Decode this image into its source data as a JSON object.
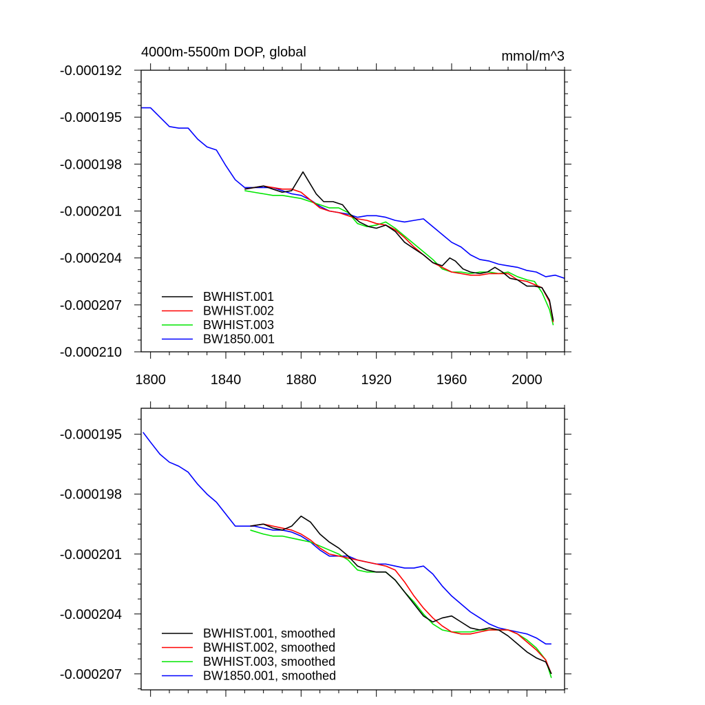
{
  "chart_data": [
    {
      "type": "line",
      "title": "4000m-5500m DOP, global",
      "units": "mmol/m^3",
      "xlim": [
        1795,
        2020
      ],
      "ylim": [
        -0.00021,
        -0.000192
      ],
      "xticks": [
        1800,
        1840,
        1880,
        1920,
        1960,
        2000
      ],
      "yticks": [
        -0.000192,
        -0.000195,
        -0.000198,
        -0.000201,
        -0.000204,
        -0.000207,
        -0.00021
      ],
      "ytick_labels": [
        "-0.000192",
        "-0.000195",
        "-0.000198",
        "-0.000201",
        "-0.000204",
        "-0.000207",
        "-0.000210"
      ],
      "xtick_labels": [
        "1800",
        "1840",
        "1880",
        "1920",
        "1960",
        "2000"
      ],
      "legend_position": "bottom-left",
      "series": [
        {
          "name": "BWHIST.001",
          "color": "#000000",
          "x": [
            1850,
            1855,
            1860,
            1865,
            1870,
            1875,
            1878,
            1881,
            1884,
            1888,
            1892,
            1897,
            1902,
            1906,
            1911,
            1916,
            1920,
            1925,
            1930,
            1935,
            1940,
            1945,
            1950,
            1955,
            1959,
            1962,
            1966,
            1970,
            1975,
            1979,
            1983,
            1987,
            1991,
            1995,
            2000,
            2004,
            2008,
            2012,
            2014
          ],
          "y": [
            -0.0001996,
            -0.0001995,
            -0.0001994,
            -0.0001996,
            -0.0001998,
            -0.0001997,
            -0.0001991,
            -0.0001985,
            -0.0001991,
            -0.0001999,
            -0.0002004,
            -0.0002004,
            -0.0002006,
            -0.0002012,
            -0.0002017,
            -0.000202,
            -0.0002021,
            -0.0002019,
            -0.0002023,
            -0.000203,
            -0.0002034,
            -0.0002038,
            -0.0002043,
            -0.0002045,
            -0.000204,
            -0.0002042,
            -0.0002047,
            -0.0002049,
            -0.000205,
            -0.0002049,
            -0.0002046,
            -0.0002049,
            -0.0002053,
            -0.0002054,
            -0.0002058,
            -0.0002058,
            -0.0002059,
            -0.0002067,
            -0.000208
          ]
        },
        {
          "name": "BWHIST.002",
          "color": "#ff0000",
          "x": [
            1850,
            1855,
            1860,
            1865,
            1870,
            1875,
            1880,
            1885,
            1890,
            1895,
            1900,
            1905,
            1910,
            1915,
            1920,
            1925,
            1930,
            1935,
            1940,
            1945,
            1950,
            1955,
            1960,
            1965,
            1970,
            1975,
            1980,
            1985,
            1990,
            1995,
            2000,
            2004,
            2008,
            2012,
            2014
          ],
          "y": [
            -0.0001996,
            -0.0001995,
            -0.0001994,
            -0.0001995,
            -0.0001996,
            -0.0001996,
            -0.0001998,
            -0.0002003,
            -0.0002008,
            -0.000201,
            -0.0002011,
            -0.0002013,
            -0.0002015,
            -0.0002016,
            -0.0002018,
            -0.0002019,
            -0.0002022,
            -0.0002027,
            -0.0002033,
            -0.0002038,
            -0.0002043,
            -0.0002046,
            -0.0002049,
            -0.000205,
            -0.0002051,
            -0.0002051,
            -0.000205,
            -0.000205,
            -0.000205,
            -0.0002054,
            -0.0002055,
            -0.0002057,
            -0.0002059,
            -0.0002068,
            -0.0002081
          ]
        },
        {
          "name": "BWHIST.003",
          "color": "#00e600",
          "x": [
            1850,
            1855,
            1860,
            1865,
            1870,
            1875,
            1880,
            1885,
            1890,
            1895,
            1900,
            1905,
            1910,
            1915,
            1920,
            1925,
            1930,
            1935,
            1940,
            1945,
            1950,
            1955,
            1960,
            1965,
            1970,
            1975,
            1980,
            1985,
            1990,
            1995,
            2000,
            2004,
            2008,
            2012,
            2014
          ],
          "y": [
            -0.0001997,
            -0.0001998,
            -0.0001999,
            -0.0002,
            -0.0002,
            -0.0002001,
            -0.0002002,
            -0.0002004,
            -0.0002006,
            -0.0002008,
            -0.0002008,
            -0.0002011,
            -0.0002018,
            -0.000202,
            -0.0002019,
            -0.0002017,
            -0.0002021,
            -0.0002026,
            -0.0002031,
            -0.0002036,
            -0.0002041,
            -0.0002047,
            -0.0002049,
            -0.0002049,
            -0.000205,
            -0.0002049,
            -0.0002049,
            -0.000205,
            -0.0002049,
            -0.0002052,
            -0.0002054,
            -0.0002055,
            -0.0002062,
            -0.0002073,
            -0.0002083
          ]
        },
        {
          "name": "BW1850.001",
          "color": "#0000ff",
          "x": [
            1795,
            1800,
            1805,
            1810,
            1815,
            1820,
            1825,
            1830,
            1835,
            1840,
            1845,
            1850,
            1855,
            1860,
            1865,
            1870,
            1875,
            1880,
            1885,
            1890,
            1895,
            1900,
            1905,
            1910,
            1915,
            1920,
            1925,
            1930,
            1935,
            1940,
            1945,
            1950,
            1955,
            1960,
            1965,
            1970,
            1975,
            1980,
            1985,
            1990,
            1995,
            2000,
            2005,
            2010,
            2015,
            2020
          ],
          "y": [
            -0.0001944,
            -0.0001944,
            -0.000195,
            -0.0001956,
            -0.0001957,
            -0.0001957,
            -0.0001964,
            -0.0001969,
            -0.0001971,
            -0.0001981,
            -0.000199,
            -0.0001995,
            -0.0001995,
            -0.0001995,
            -0.0001995,
            -0.0001997,
            -0.0001999,
            -0.0002,
            -0.0002003,
            -0.0002007,
            -0.000201,
            -0.0002011,
            -0.0002012,
            -0.0002014,
            -0.0002013,
            -0.0002013,
            -0.0002014,
            -0.0002016,
            -0.0002017,
            -0.0002016,
            -0.0002015,
            -0.000202,
            -0.0002025,
            -0.000203,
            -0.0002033,
            -0.0002038,
            -0.0002041,
            -0.0002042,
            -0.0002044,
            -0.0002045,
            -0.0002046,
            -0.0002048,
            -0.0002049,
            -0.0002052,
            -0.0002051,
            -0.0002053
          ]
        }
      ]
    },
    {
      "type": "line",
      "title": "",
      "xlim": [
        1795,
        2020
      ],
      "ylim": [
        -0.0002078,
        -0.0001937
      ],
      "xticks": [
        1800,
        1840,
        1880,
        1920,
        1960,
        2000
      ],
      "yticks": [
        -0.000195,
        -0.000198,
        -0.000201,
        -0.000204,
        -0.000207
      ],
      "ytick_labels": [
        "-0.000195",
        "-0.000198",
        "-0.000201",
        "-0.000204",
        "-0.000207"
      ],
      "xtick_labels": [],
      "legend_position": "bottom-left",
      "series": [
        {
          "name": "BWHIST.001, smoothed",
          "color": "#000000",
          "x": [
            1853,
            1860,
            1865,
            1870,
            1875,
            1880,
            1885,
            1890,
            1895,
            1900,
            1905,
            1910,
            1915,
            1920,
            1925,
            1930,
            1935,
            1940,
            1945,
            1950,
            1955,
            1960,
            1965,
            1970,
            1975,
            1980,
            1985,
            1990,
            1995,
            2000,
            2005,
            2010,
            2013
          ],
          "y": [
            -0.0001996,
            -0.0001995,
            -0.0001997,
            -0.0001998,
            -0.0001996,
            -0.0001991,
            -0.0001994,
            -0.0002,
            -0.0002004,
            -0.0002007,
            -0.0002011,
            -0.0002016,
            -0.0002018,
            -0.0002019,
            -0.0002019,
            -0.0002023,
            -0.0002029,
            -0.0002035,
            -0.0002041,
            -0.0002044,
            -0.0002042,
            -0.0002041,
            -0.0002044,
            -0.0002047,
            -0.0002048,
            -0.0002047,
            -0.0002048,
            -0.0002051,
            -0.0002055,
            -0.0002059,
            -0.0002062,
            -0.0002064,
            -0.000207
          ]
        },
        {
          "name": "BWHIST.002, smoothed",
          "color": "#ff0000",
          "x": [
            1853,
            1860,
            1865,
            1870,
            1875,
            1880,
            1885,
            1890,
            1895,
            1900,
            1905,
            1910,
            1915,
            1920,
            1925,
            1930,
            1935,
            1940,
            1945,
            1950,
            1955,
            1960,
            1965,
            1970,
            1975,
            1980,
            1985,
            1990,
            1995,
            2000,
            2005,
            2010,
            2013
          ],
          "y": [
            -0.0001996,
            -0.0001995,
            -0.0001996,
            -0.0001997,
            -0.0001998,
            -0.0002,
            -0.0002003,
            -0.0002007,
            -0.000201,
            -0.0002011,
            -0.0002012,
            -0.0002013,
            -0.0002014,
            -0.0002015,
            -0.0002016,
            -0.0002018,
            -0.0002024,
            -0.0002031,
            -0.0002037,
            -0.0002042,
            -0.0002046,
            -0.0002049,
            -0.000205,
            -0.000205,
            -0.0002049,
            -0.0002048,
            -0.0002048,
            -0.0002048,
            -0.000205,
            -0.0002054,
            -0.0002058,
            -0.0002063,
            -0.000207
          ]
        },
        {
          "name": "BWHIST.003, smoothed",
          "color": "#00e600",
          "x": [
            1853,
            1860,
            1865,
            1870,
            1875,
            1880,
            1885,
            1890,
            1895,
            1900,
            1905,
            1910,
            1915,
            1920,
            1925,
            1930,
            1935,
            1940,
            1945,
            1950,
            1955,
            1960,
            1965,
            1970,
            1975,
            1980,
            1985,
            1990,
            1995,
            2000,
            2005,
            2010,
            2013
          ],
          "y": [
            -0.0001998,
            -0.0002,
            -0.0002001,
            -0.0002001,
            -0.0002002,
            -0.0002003,
            -0.0002004,
            -0.0002006,
            -0.0002008,
            -0.000201,
            -0.0002013,
            -0.0002018,
            -0.0002019,
            -0.0002019,
            -0.0002019,
            -0.0002023,
            -0.0002029,
            -0.0002034,
            -0.000204,
            -0.0002045,
            -0.0002048,
            -0.0002049,
            -0.0002049,
            -0.0002049,
            -0.0002048,
            -0.0002048,
            -0.0002048,
            -0.0002048,
            -0.000205,
            -0.0002053,
            -0.0002057,
            -0.0002063,
            -0.0002072
          ]
        },
        {
          "name": "BW1850.001, smoothed",
          "color": "#0000ff",
          "x": [
            1796,
            1800,
            1805,
            1810,
            1815,
            1820,
            1825,
            1830,
            1835,
            1840,
            1845,
            1850,
            1855,
            1860,
            1865,
            1870,
            1875,
            1880,
            1885,
            1890,
            1895,
            1900,
            1905,
            1910,
            1915,
            1920,
            1925,
            1930,
            1935,
            1940,
            1945,
            1950,
            1955,
            1960,
            1965,
            1970,
            1975,
            1980,
            1985,
            1990,
            1995,
            2000,
            2005,
            2010,
            2013
          ],
          "y": [
            -0.0001949,
            -0.0001954,
            -0.000196,
            -0.0001964,
            -0.0001966,
            -0.0001969,
            -0.0001975,
            -0.000198,
            -0.0001984,
            -0.000199,
            -0.0001996,
            -0.0001996,
            -0.0001996,
            -0.0001997,
            -0.0001998,
            -0.0001998,
            -0.0001999,
            -0.0002001,
            -0.0002004,
            -0.0002008,
            -0.0002011,
            -0.0002011,
            -0.0002011,
            -0.0002013,
            -0.0002014,
            -0.0002015,
            -0.0002015,
            -0.0002016,
            -0.0002017,
            -0.0002017,
            -0.0002016,
            -0.000202,
            -0.0002026,
            -0.0002031,
            -0.0002035,
            -0.0002039,
            -0.0002042,
            -0.0002045,
            -0.0002047,
            -0.0002048,
            -0.0002049,
            -0.000205,
            -0.0002052,
            -0.0002055,
            -0.0002055
          ]
        }
      ]
    }
  ]
}
